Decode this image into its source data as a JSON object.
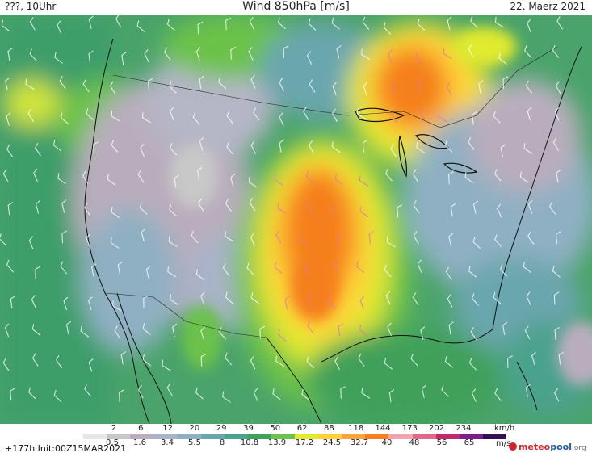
{
  "header": {
    "left": "???, 10Uhr",
    "title": "Wind 850hPa [m/s]",
    "date": "22. Maerz 2021"
  },
  "legend": {
    "kmh_values": [
      "2",
      "6",
      "12",
      "20",
      "29",
      "39",
      "50",
      "62",
      "88",
      "118",
      "144",
      "173",
      "202",
      "234"
    ],
    "kmh_unit": "km/h",
    "ms_values": [
      "0.5",
      "1.6",
      "3.4",
      "5.5",
      "8",
      "10.8",
      "13.9",
      "17.2",
      "24.5",
      "32.7",
      "40",
      "48",
      "56",
      "65"
    ],
    "ms_unit": "m/s",
    "colors": [
      "#e6e6e6",
      "#c8c8c8",
      "#b9adbd",
      "#a9b3c8",
      "#8fb0c2",
      "#6aa6ad",
      "#4ba28c",
      "#3fa05a",
      "#6cc24a",
      "#e0ea2e",
      "#ffd23a",
      "#f7a43c",
      "#f57f1f",
      "#f0a3b0",
      "#e06a8a",
      "#c02a6a",
      "#7a1e8a",
      "#301050"
    ]
  },
  "footer": {
    "run_info": "+177h Init:00Z15MAR2021"
  },
  "logo": {
    "part1": "meteo",
    "part2": "pool",
    "part3": ".org"
  }
}
